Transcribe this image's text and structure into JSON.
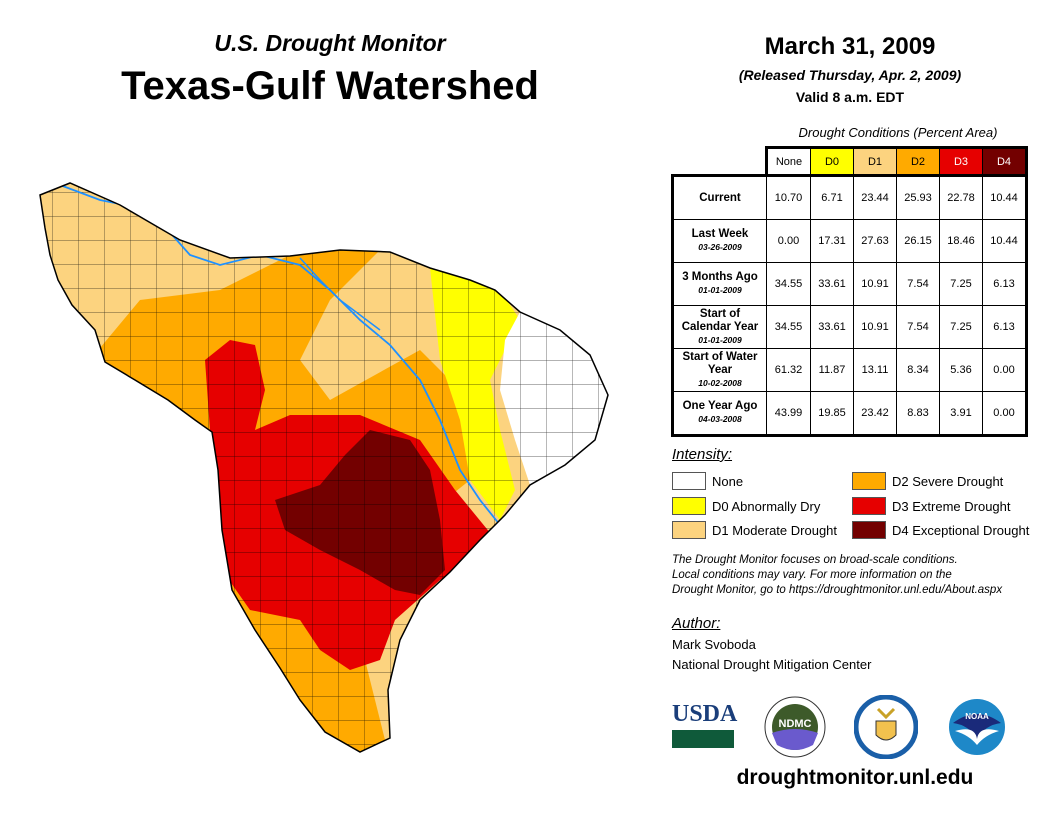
{
  "header": {
    "subtitle": "U.S. Drought Monitor",
    "title": "Texas-Gulf Watershed",
    "date": "March 31, 2009",
    "released": "(Released Thursday, Apr. 2, 2009)",
    "valid": "Valid 8 a.m. EDT"
  },
  "table": {
    "caption": "Drought Conditions (Percent Area)",
    "columns": [
      "None",
      "D0",
      "D1",
      "D2",
      "D3",
      "D4"
    ],
    "rows": [
      {
        "label": "Current",
        "date": "",
        "values": [
          "10.70",
          "6.71",
          "23.44",
          "25.93",
          "22.78",
          "10.44"
        ]
      },
      {
        "label": "Last Week",
        "date": "03-26-2009",
        "values": [
          "0.00",
          "17.31",
          "27.63",
          "26.15",
          "18.46",
          "10.44"
        ]
      },
      {
        "label": "3 Months Ago",
        "date": "01-01-2009",
        "values": [
          "34.55",
          "33.61",
          "10.91",
          "7.54",
          "7.25",
          "6.13"
        ]
      },
      {
        "label": "Start of Calendar Year",
        "date": "01-01-2009",
        "values": [
          "34.55",
          "33.61",
          "10.91",
          "7.54",
          "7.25",
          "6.13"
        ]
      },
      {
        "label": "Start of Water Year",
        "date": "10-02-2008",
        "values": [
          "61.32",
          "11.87",
          "13.11",
          "8.34",
          "5.36",
          "0.00"
        ]
      },
      {
        "label": "One Year Ago",
        "date": "04-03-2008",
        "values": [
          "43.99",
          "19.85",
          "23.42",
          "8.83",
          "3.91",
          "0.00"
        ]
      }
    ]
  },
  "legend": {
    "title": "Intensity:",
    "items": [
      {
        "label": "None",
        "color": "#FFFFFF"
      },
      {
        "label": "D0 Abnormally Dry",
        "color": "#FFFF00"
      },
      {
        "label": "D1 Moderate Drought",
        "color": "#FCD37F"
      },
      {
        "label": "D2 Severe Drought",
        "color": "#FFAA00"
      },
      {
        "label": "D3 Extreme Drought",
        "color": "#E60000"
      },
      {
        "label": "D4 Exceptional Drought",
        "color": "#730000"
      }
    ]
  },
  "note": [
    "The Drought Monitor focuses on broad-scale conditions.",
    "Local conditions may vary. For more information on the",
    "Drought Monitor, go to https://droughtmonitor.unl.edu/About.aspx"
  ],
  "author": {
    "label": "Author:",
    "name": "Mark Svoboda",
    "org": "National Drought Mitigation Center"
  },
  "logos": [
    "USDA",
    "NDMC",
    "Department of Commerce",
    "NOAA"
  ],
  "url": "droughtmonitor.unl.edu"
}
